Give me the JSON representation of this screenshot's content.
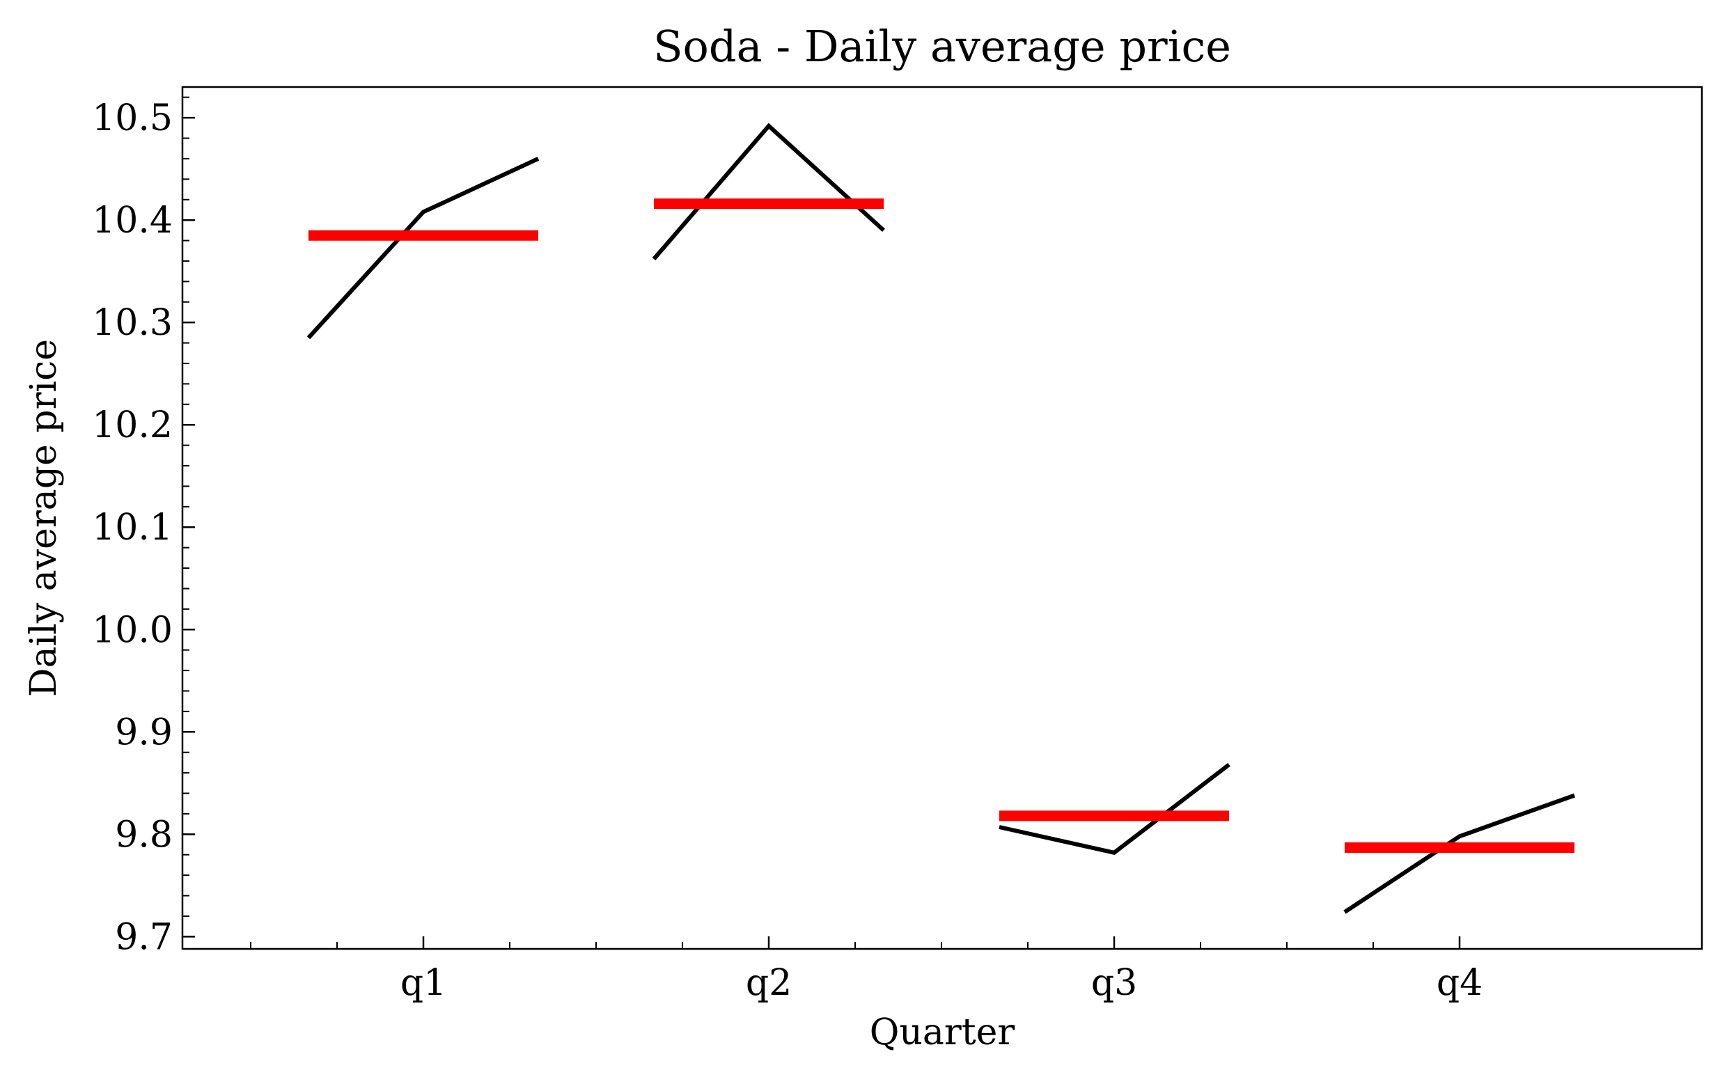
{
  "chart_data": {
    "type": "line",
    "title": "Soda - Daily average price",
    "xlabel": "Quarter",
    "ylabel": "Daily average price",
    "categories": [
      "q1",
      "q2",
      "q3",
      "q4"
    ],
    "ylim": [
      9.688,
      10.53
    ],
    "yticks": [
      "9.7",
      "9.8",
      "9.9",
      "10.0",
      "10.1",
      "10.2",
      "10.3",
      "10.4",
      "10.5"
    ],
    "grid": false,
    "series": [
      {
        "kind": "daily-line",
        "color": "#000000",
        "groups": [
          {
            "category": "q1",
            "values": [
              10.285,
              10.408,
              10.46
            ]
          },
          {
            "category": "q2",
            "values": [
              10.362,
              10.492,
              10.39
            ]
          },
          {
            "category": "q3",
            "values": [
              9.807,
              9.782,
              9.868
            ]
          },
          {
            "category": "q4",
            "values": [
              9.724,
              9.798,
              9.838
            ]
          }
        ]
      },
      {
        "kind": "quarter-mean",
        "color": "#ff0000",
        "values": [
          10.385,
          10.416,
          9.818,
          9.787
        ]
      }
    ]
  }
}
